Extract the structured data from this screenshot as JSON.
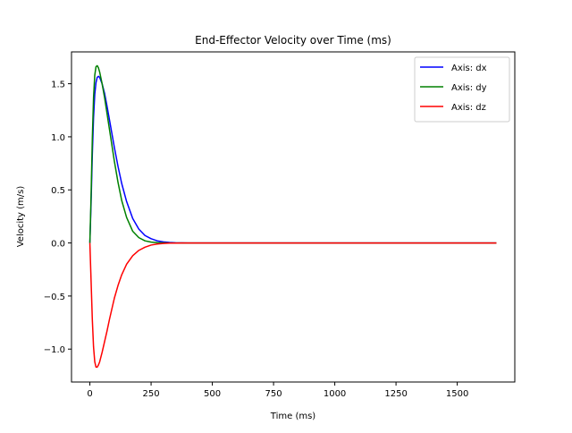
{
  "chart_data": {
    "type": "line",
    "title": "End-Effector Velocity over Time (ms)",
    "xlabel": "Time (ms)",
    "ylabel": "Velocity (m/s)",
    "xlim": [
      -75,
      1735
    ],
    "ylim": [
      -1.31,
      1.8
    ],
    "xticks": [
      0,
      250,
      500,
      750,
      1000,
      1250,
      1500
    ],
    "yticks": [
      -1.0,
      -0.5,
      0.0,
      0.5,
      1.0,
      1.5
    ],
    "xtick_labels": [
      "0",
      "250",
      "500",
      "750",
      "1000",
      "1250",
      "1500"
    ],
    "ytick_labels": [
      "−1.0",
      "−0.5",
      "0.0",
      "0.5",
      "1.0",
      "1.5"
    ],
    "grid": false,
    "legend_position": "top-right",
    "x": [
      0,
      5,
      10,
      15,
      20,
      25,
      30,
      35,
      40,
      50,
      60,
      70,
      80,
      90,
      100,
      115,
      130,
      150,
      175,
      200,
      225,
      250,
      275,
      300,
      325,
      350,
      375,
      400,
      450,
      500,
      600,
      800,
      1000,
      1200,
      1400,
      1660
    ],
    "series": [
      {
        "name": "Axis: dx",
        "color": "#0000ff",
        "values": [
          0.0,
          0.38,
          0.83,
          1.18,
          1.4,
          1.51,
          1.56,
          1.57,
          1.56,
          1.5,
          1.41,
          1.29,
          1.16,
          1.03,
          0.9,
          0.72,
          0.56,
          0.39,
          0.23,
          0.13,
          0.07,
          0.04,
          0.02,
          0.01,
          0.005,
          0.002,
          0.001,
          0.0,
          0.0,
          0.0,
          0.0,
          0.0,
          0.0,
          0.0,
          0.0,
          0.0
        ]
      },
      {
        "name": "Axis: dy",
        "color": "#008000",
        "values": [
          0.0,
          0.45,
          0.98,
          1.37,
          1.58,
          1.66,
          1.67,
          1.65,
          1.61,
          1.5,
          1.37,
          1.22,
          1.07,
          0.92,
          0.77,
          0.57,
          0.4,
          0.24,
          0.11,
          0.05,
          0.02,
          0.008,
          0.003,
          0.001,
          0.0,
          0.0,
          0.0,
          0.0,
          0.0,
          0.0,
          0.0,
          0.0,
          0.0,
          0.0,
          0.0,
          0.0
        ]
      },
      {
        "name": "Axis: dz",
        "color": "#ff0000",
        "values": [
          0.0,
          -0.36,
          -0.72,
          -0.98,
          -1.12,
          -1.17,
          -1.17,
          -1.15,
          -1.12,
          -1.03,
          -0.93,
          -0.83,
          -0.72,
          -0.62,
          -0.52,
          -0.4,
          -0.3,
          -0.2,
          -0.12,
          -0.07,
          -0.04,
          -0.02,
          -0.01,
          -0.005,
          -0.002,
          -0.001,
          0.0,
          0.0,
          0.0,
          0.0,
          0.0,
          0.0,
          0.0,
          0.0,
          0.0,
          0.0
        ]
      }
    ]
  }
}
